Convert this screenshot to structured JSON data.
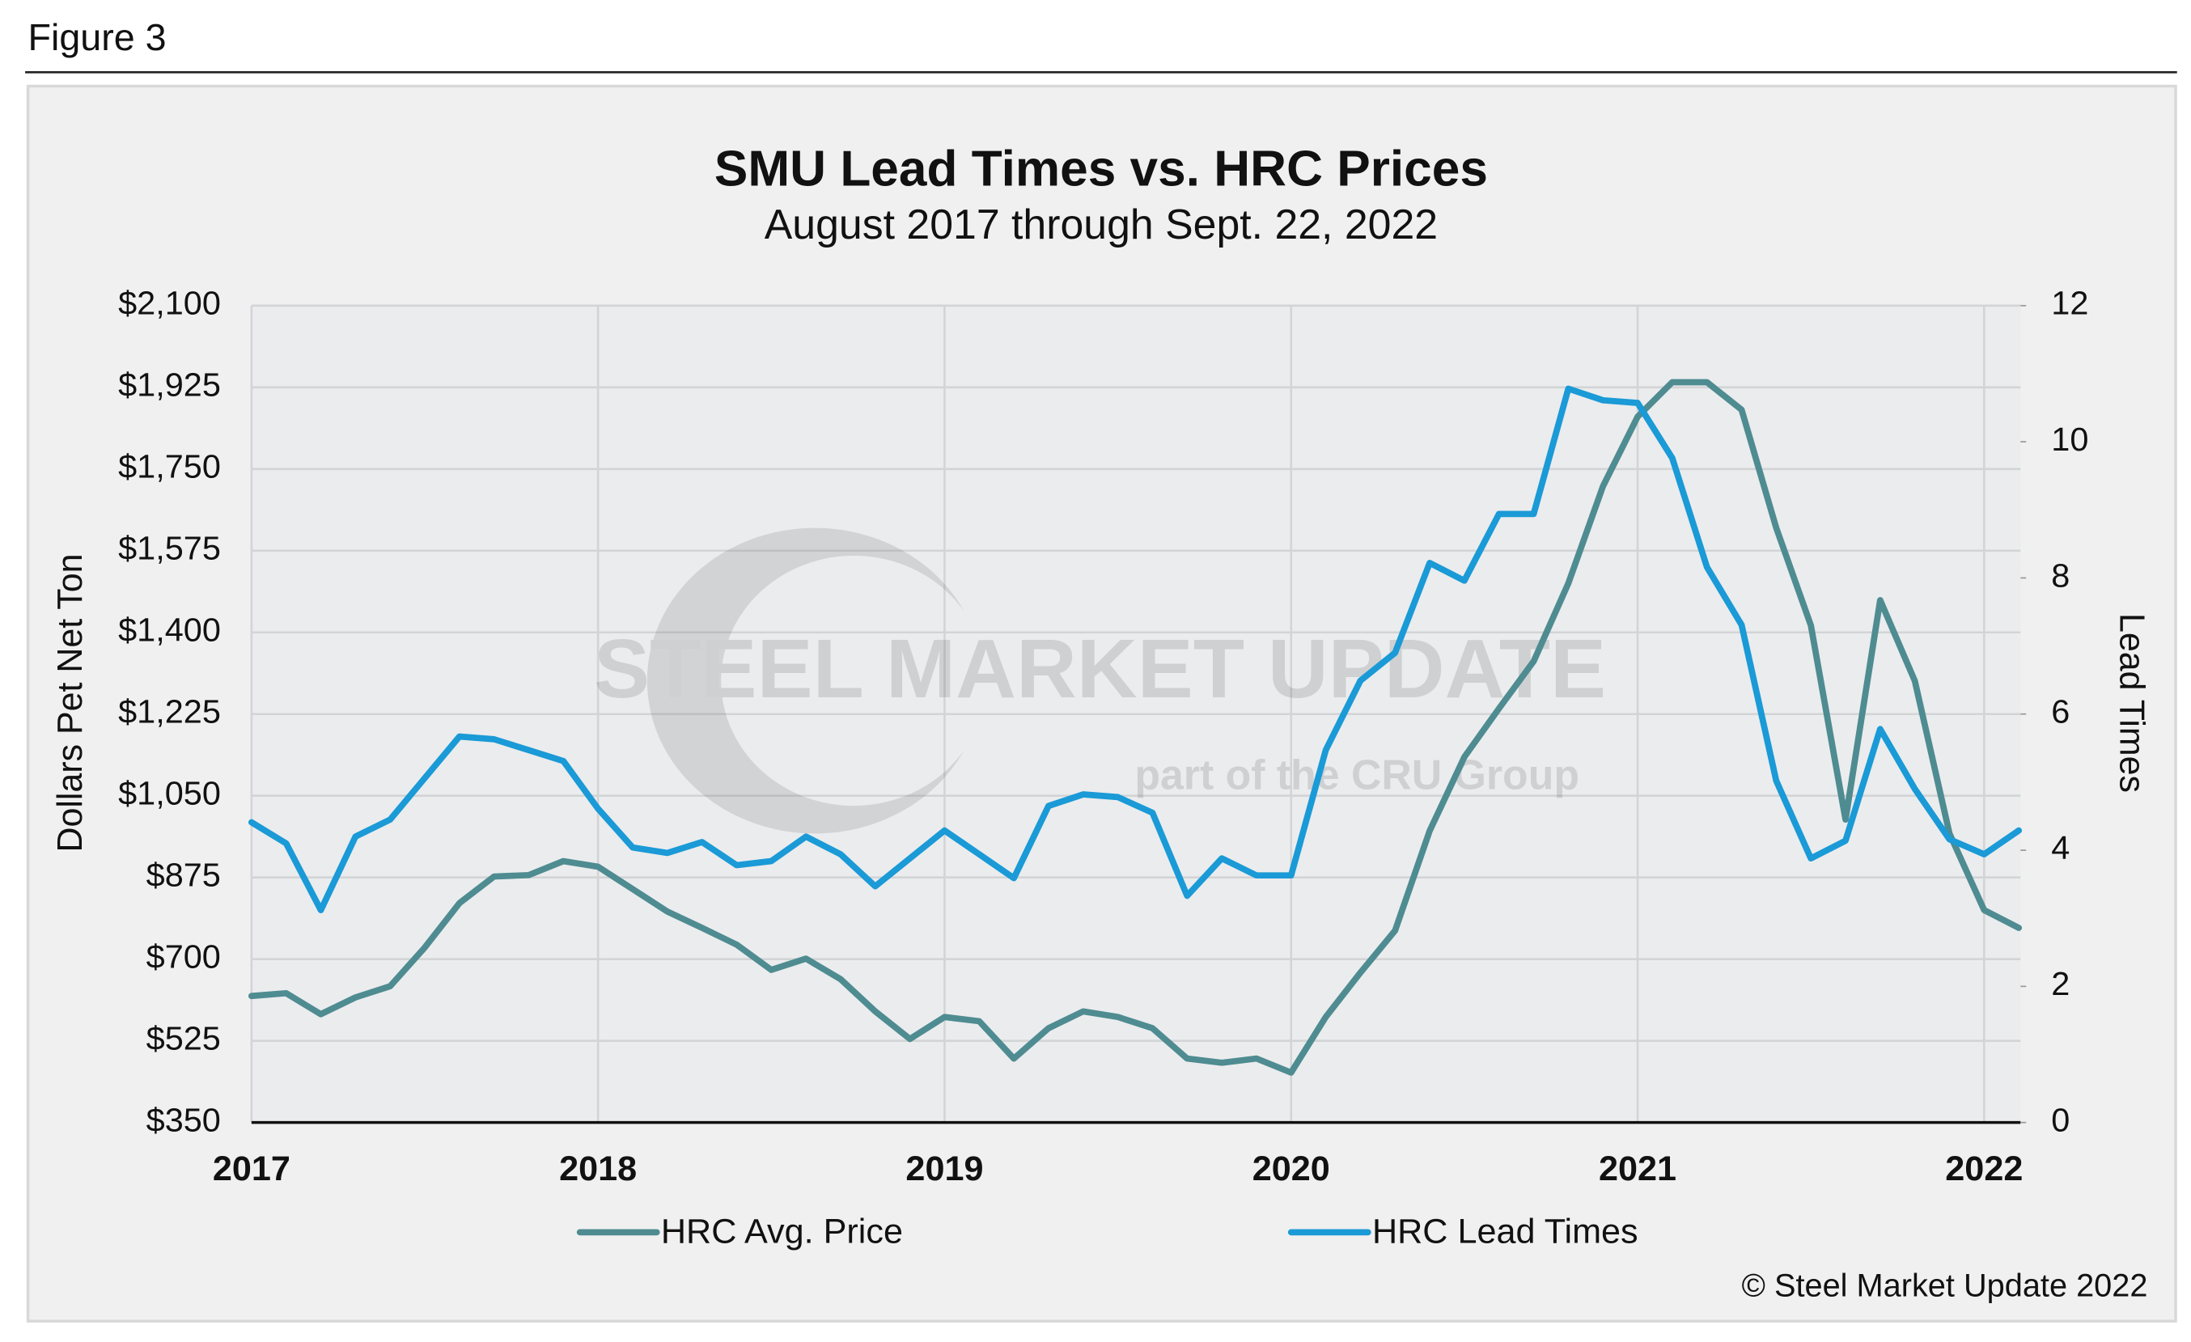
{
  "header": {
    "figure_label": "Figure 3"
  },
  "chart_data": {
    "type": "line",
    "title": "SMU Lead Times vs. HRC Prices",
    "subtitle": "August 2017 through Sept. 22, 2022",
    "ylabel": "Dollars Pet Net Ton",
    "y2label": "Lead Times",
    "watermark": {
      "text": "STEEL MARKET UPDATE",
      "subtext": "part of the CRU Group"
    },
    "source": "© Steel Market Update 2022",
    "grid": true,
    "legend_position": "bottom",
    "xlim": [
      2017,
      2022.105
    ],
    "xticks": [
      2017,
      2018,
      2019,
      2020,
      2021,
      2022
    ],
    "ylim": [
      350,
      2100
    ],
    "yticks": [
      {
        "value": 350,
        "label": "$350"
      },
      {
        "value": 525,
        "label": "$525"
      },
      {
        "value": 700,
        "label": "$700"
      },
      {
        "value": 875,
        "label": "$875"
      },
      {
        "value": 1050,
        "label": "$1,050"
      },
      {
        "value": 1225,
        "label": "$1,225"
      },
      {
        "value": 1400,
        "label": "$1,400"
      },
      {
        "value": 1575,
        "label": "$1,575"
      },
      {
        "value": 1750,
        "label": "$1,750"
      },
      {
        "value": 1925,
        "label": "$1,925"
      },
      {
        "value": 2100,
        "label": "$2,100"
      }
    ],
    "y2lim": [
      0,
      12
    ],
    "y2ticks": [
      0,
      2,
      4,
      6,
      8,
      10,
      12
    ],
    "x": [
      2017.0,
      2017.1,
      2017.2,
      2017.3,
      2017.4,
      2017.5,
      2017.6,
      2017.7,
      2017.8,
      2017.9,
      2018.0,
      2018.1,
      2018.2,
      2018.3,
      2018.4,
      2018.5,
      2018.6,
      2018.7,
      2018.8,
      2018.9,
      2019.0,
      2019.1,
      2019.2,
      2019.3,
      2019.4,
      2019.5,
      2019.6,
      2019.7,
      2019.8,
      2019.9,
      2020.0,
      2020.1,
      2020.2,
      2020.3,
      2020.4,
      2020.5,
      2020.6,
      2020.7,
      2020.8,
      2020.9,
      2021.0,
      2021.1,
      2021.2,
      2021.3,
      2021.4,
      2021.5,
      2021.6,
      2021.7,
      2021.8,
      2021.9,
      2022.0,
      2022.1
    ],
    "series": [
      {
        "name": "HRC Avg. Price",
        "color": "#4e8c91",
        "values": [
          621,
          627,
          582,
          618,
          642,
          725,
          820,
          877,
          880,
          910,
          898,
          850,
          802,
          767,
          731,
          677,
          701,
          657,
          588,
          529,
          576,
          567,
          487,
          552,
          588,
          576,
          552,
          487,
          478,
          487,
          457,
          576,
          671,
          761,
          975,
          1133,
          1237,
          1338,
          1505,
          1713,
          1862,
          1936,
          1936,
          1877,
          1624,
          1415,
          999,
          1469,
          1296,
          969,
          805,
          767
        ]
      },
      {
        "name": "HRC Lead Times",
        "color": "#1a9ad6",
        "axis": "y2",
        "values": [
          4.41,
          4.1,
          3.12,
          4.2,
          4.45,
          5.06,
          5.67,
          5.63,
          5.47,
          5.31,
          4.61,
          4.04,
          3.96,
          4.12,
          3.78,
          3.84,
          4.2,
          3.94,
          3.47,
          3.88,
          4.29,
          3.94,
          3.59,
          4.65,
          4.82,
          4.78,
          4.55,
          3.33,
          3.88,
          3.63,
          3.63,
          5.47,
          6.49,
          6.9,
          8.22,
          7.96,
          8.94,
          8.94,
          10.78,
          10.61,
          10.57,
          9.76,
          8.16,
          7.31,
          5.02,
          3.88,
          4.14,
          5.78,
          4.9,
          4.16,
          3.94,
          4.29
        ]
      }
    ]
  }
}
